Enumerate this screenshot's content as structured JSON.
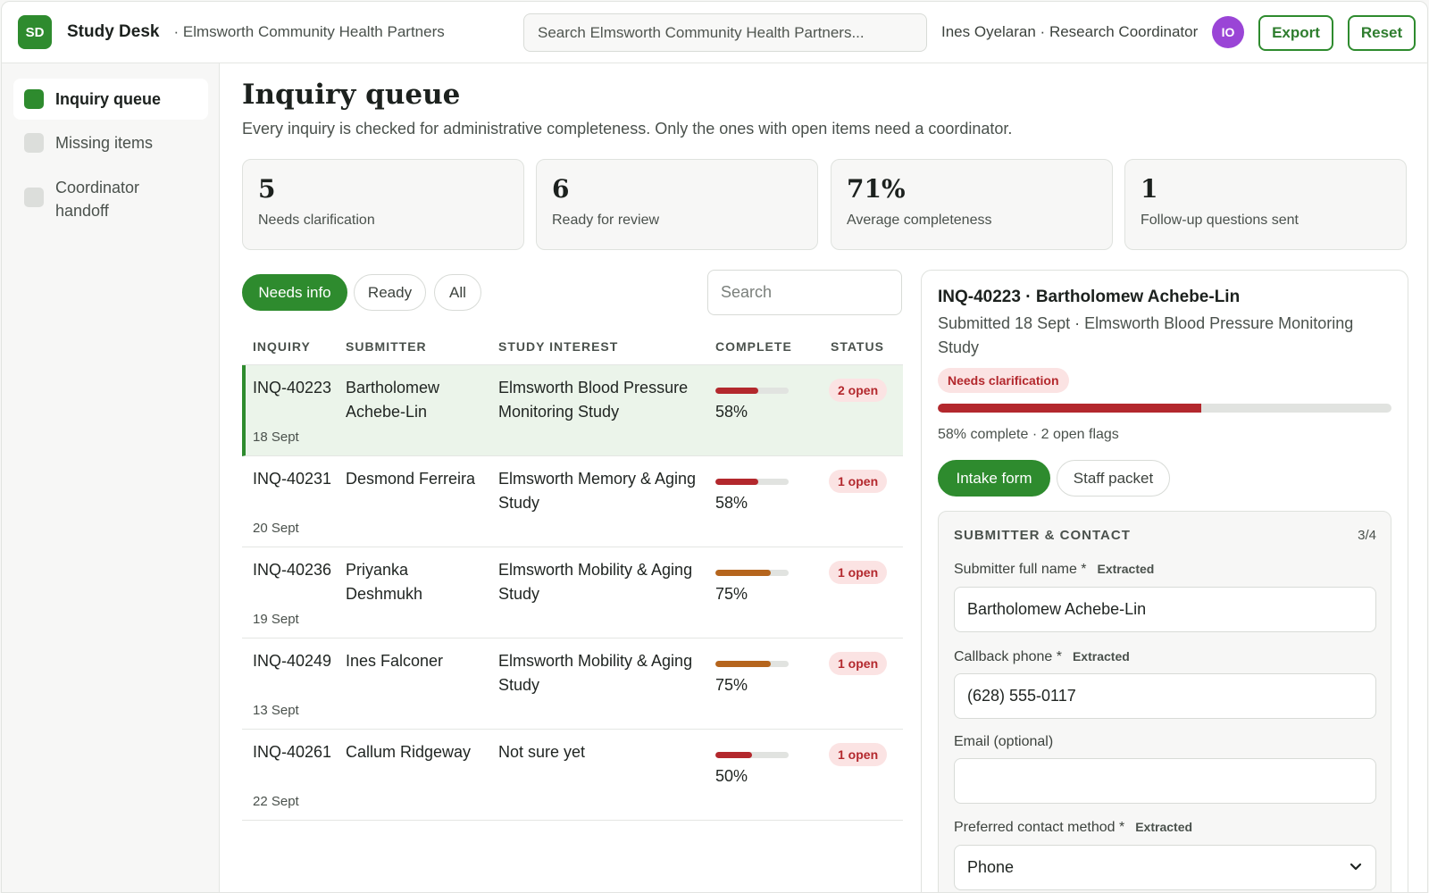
{
  "header": {
    "logo_text": "SD",
    "app_name": "Study Desk",
    "org_name": "· Elmsworth Community Health Partners",
    "search_placeholder": "Search Elmsworth Community Health Partners...",
    "user": "Ines Oyelaran · Research Coordinator",
    "avatar": "IO",
    "export_label": "Export",
    "reset_label": "Reset"
  },
  "sidebar": {
    "items": [
      {
        "label": "Inquiry queue",
        "active": true
      },
      {
        "label": "Missing items",
        "active": false
      },
      {
        "label": "Coordinator handoff",
        "active": false
      }
    ]
  },
  "main": {
    "title": "Inquiry queue",
    "subtitle": "Every inquiry is checked for administrative completeness. Only the ones with open items need a coordinator.",
    "stats": [
      {
        "value": "5",
        "label": "Needs clarification"
      },
      {
        "value": "6",
        "label": "Ready for review"
      },
      {
        "value": "71%",
        "label": "Average completeness"
      },
      {
        "value": "1",
        "label": "Follow-up questions sent"
      }
    ],
    "filters": [
      "Needs info",
      "Ready",
      "All"
    ],
    "table_search_placeholder": "Search",
    "columns": [
      "INQUIRY",
      "SUBMITTER",
      "STUDY INTEREST",
      "COMPLETE",
      "STATUS"
    ],
    "rows": [
      {
        "id": "INQ-40223",
        "date": "18 Sept",
        "submitter": "Bartholomew Achebe-Lin",
        "study": "Elmsworth Blood Pressure Monitoring Study",
        "complete": 0.58,
        "pct": "58%",
        "status": "2 open",
        "bar_color": "#b3282d"
      },
      {
        "id": "INQ-40231",
        "date": "20 Sept",
        "submitter": "Desmond Ferreira",
        "study": "Elmsworth Memory & Aging Study",
        "complete": 0.58,
        "pct": "58%",
        "status": "1 open",
        "bar_color": "#b3282d"
      },
      {
        "id": "INQ-40236",
        "date": "19 Sept",
        "submitter": "Priyanka Deshmukh",
        "study": "Elmsworth Mobility & Aging Study",
        "complete": 0.75,
        "pct": "75%",
        "status": "1 open",
        "bar_color": "#b5651d"
      },
      {
        "id": "INQ-40249",
        "date": "13 Sept",
        "submitter": "Ines Falconer",
        "study": "Elmsworth Mobility & Aging Study",
        "complete": 0.75,
        "pct": "75%",
        "status": "1 open",
        "bar_color": "#b5651d"
      },
      {
        "id": "INQ-40261",
        "date": "22 Sept",
        "submitter": "Callum Ridgeway",
        "study": "Not sure yet",
        "complete": 0.5,
        "pct": "50%",
        "status": "1 open",
        "bar_color": "#b3282d"
      }
    ]
  },
  "detail": {
    "title": "INQ-40223 · Bartholomew Achebe-Lin",
    "subtitle": "Submitted 18 Sept · Elmsworth Blood Pressure Monitoring Study",
    "badge": "Needs clarification",
    "complete": 0.58,
    "meta": "58% complete · 2 open flags",
    "tabs": [
      "Intake form",
      "Staff packet"
    ],
    "section": {
      "title": "SUBMITTER & CONTACT",
      "count": "3/4",
      "fields": [
        {
          "label": "Submitter full name *",
          "tag": "Extracted",
          "value": "Bartholomew Achebe-Lin"
        },
        {
          "label": "Callback phone *",
          "tag": "Extracted",
          "value": "(628) 555-0117"
        },
        {
          "label": "Email (optional)",
          "tag": "",
          "value": ""
        },
        {
          "label": "Preferred contact method *",
          "tag": "Extracted",
          "value": "Phone"
        }
      ]
    }
  }
}
